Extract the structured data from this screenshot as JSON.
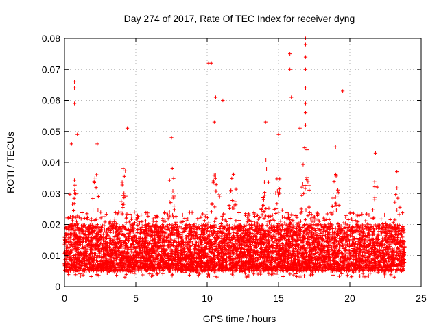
{
  "chart_data": {
    "type": "scatter",
    "title": "Day 274 of 2017, Rate Of TEC Index for receiver dyng",
    "xlabel": "GPS time / hours",
    "ylabel": "ROTI / TECUs",
    "xlim": [
      0,
      25
    ],
    "ylim": [
      0,
      0.08
    ],
    "xticks": [
      0,
      5,
      10,
      15,
      20,
      25
    ],
    "xtick_labels": [
      "0",
      "5",
      "10",
      "15",
      "20",
      "25"
    ],
    "yticks": [
      0,
      0.01,
      0.02,
      0.03,
      0.04,
      0.05,
      0.06,
      0.07,
      0.08
    ],
    "ytick_labels": [
      "0",
      "0.01",
      "0.02",
      "0.03",
      "0.04",
      "0.05",
      "0.06",
      "0.07",
      "0.08"
    ],
    "grid": true,
    "marker": "+",
    "color": "#ff0000",
    "data_range_hours": [
      0,
      23.85
    ],
    "bulk_range": [
      0.005,
      0.02
    ],
    "notable_points": [
      {
        "x": 0.7,
        "y": 0.066
      },
      {
        "x": 0.7,
        "y": 0.064
      },
      {
        "x": 0.7,
        "y": 0.059
      },
      {
        "x": 0.9,
        "y": 0.049
      },
      {
        "x": 0.5,
        "y": 0.046
      },
      {
        "x": 2.3,
        "y": 0.046
      },
      {
        "x": 4.4,
        "y": 0.051
      },
      {
        "x": 7.5,
        "y": 0.048
      },
      {
        "x": 10.1,
        "y": 0.072
      },
      {
        "x": 10.3,
        "y": 0.072
      },
      {
        "x": 10.6,
        "y": 0.061
      },
      {
        "x": 11.1,
        "y": 0.06
      },
      {
        "x": 10.5,
        "y": 0.053
      },
      {
        "x": 14.1,
        "y": 0.053
      },
      {
        "x": 15.0,
        "y": 0.049
      },
      {
        "x": 15.8,
        "y": 0.075
      },
      {
        "x": 15.8,
        "y": 0.07
      },
      {
        "x": 15.9,
        "y": 0.061
      },
      {
        "x": 16.9,
        "y": 0.08
      },
      {
        "x": 16.9,
        "y": 0.078
      },
      {
        "x": 16.9,
        "y": 0.074
      },
      {
        "x": 16.9,
        "y": 0.07
      },
      {
        "x": 16.9,
        "y": 0.064
      },
      {
        "x": 16.9,
        "y": 0.059
      },
      {
        "x": 16.9,
        "y": 0.056
      },
      {
        "x": 16.9,
        "y": 0.052
      },
      {
        "x": 16.5,
        "y": 0.051
      },
      {
        "x": 19.5,
        "y": 0.063
      },
      {
        "x": 19.0,
        "y": 0.045
      },
      {
        "x": 21.8,
        "y": 0.043
      },
      {
        "x": 23.3,
        "y": 0.037
      }
    ]
  }
}
